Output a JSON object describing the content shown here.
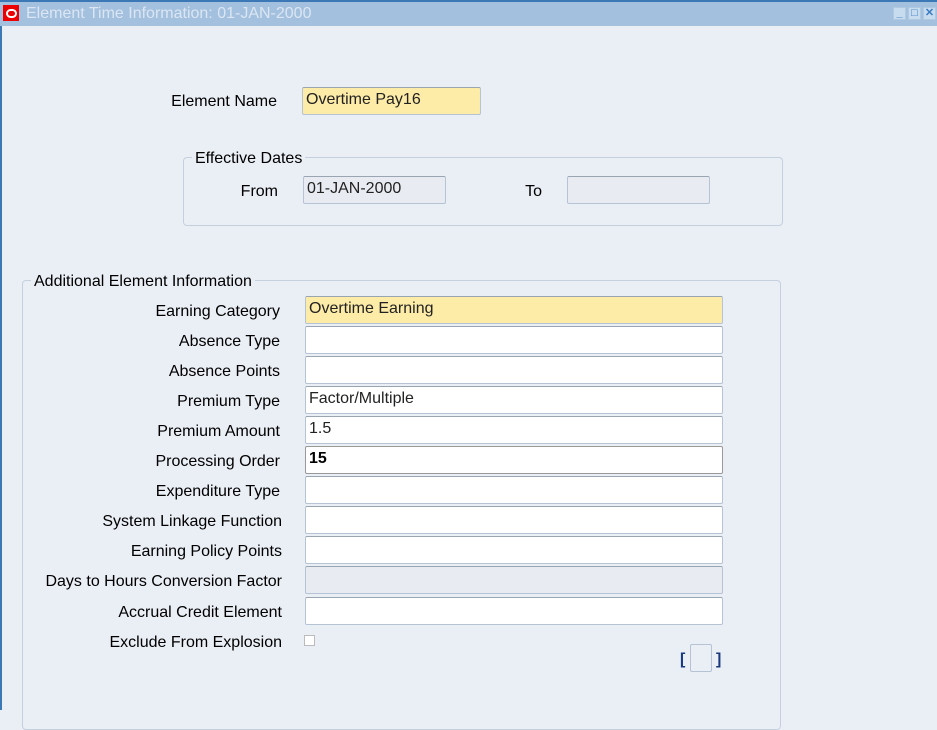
{
  "window": {
    "title": "Element Time Information: 01-JAN-2000",
    "minimize": "_",
    "maximize": "□",
    "close": "✕"
  },
  "element_name": {
    "label": "Element Name",
    "value": "Overtime Pay16"
  },
  "effective_dates": {
    "legend": "Effective Dates",
    "from_label": "From",
    "from_value": "01-JAN-2000",
    "to_label": "To",
    "to_value": ""
  },
  "additional": {
    "legend": "Additional Element Information",
    "fields": [
      {
        "label": "Earning Category",
        "value": "Overtime Earning",
        "state": "required"
      },
      {
        "label": "Absence Type",
        "value": "",
        "state": "normal"
      },
      {
        "label": "Absence Points",
        "value": "",
        "state": "normal"
      },
      {
        "label": "Premium Type",
        "value": "Factor/Multiple",
        "state": "normal"
      },
      {
        "label": "Premium Amount",
        "value": "1.5",
        "state": "normal"
      },
      {
        "label": "Processing Order",
        "value": "15",
        "state": "focused"
      },
      {
        "label": "Expenditure Type",
        "value": "",
        "state": "normal"
      },
      {
        "label": "System Linkage Function",
        "value": "",
        "state": "normal"
      },
      {
        "label": "Earning Policy Points",
        "value": "",
        "state": "normal"
      },
      {
        "label": "Days to Hours Conversion Factor",
        "value": "",
        "state": "readonly"
      },
      {
        "label": "Accrual Credit Element",
        "value": "",
        "state": "normal"
      }
    ],
    "exclude_label": "Exclude From Explosion",
    "exclude_checked": false,
    "bracket_open": "[",
    "bracket_close": "]"
  }
}
